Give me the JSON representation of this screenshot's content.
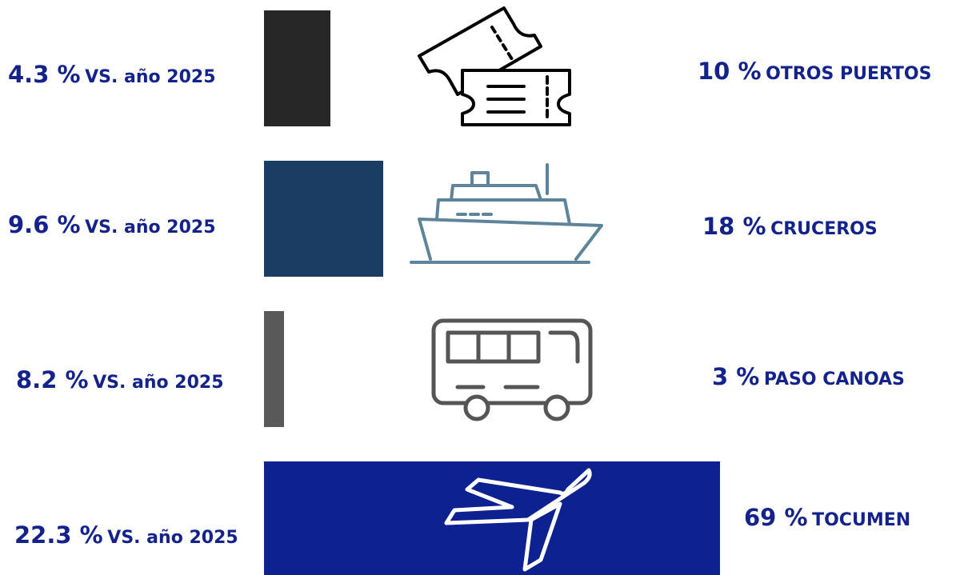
{
  "chart_data": {
    "type": "bar",
    "orientation": "horizontal",
    "categories": [
      "OTROS PUERTOS",
      "CRUCEROS",
      "PASO CANOAS",
      "TOCUMEN"
    ],
    "series": [
      {
        "values": [
          10,
          18,
          3,
          69
        ],
        "unit": "%"
      }
    ],
    "variation": [
      4.3,
      9.6,
      8.2,
      22.3
    ],
    "variation_suffix": "VS. año 2025",
    "share_labels": [
      "10 %",
      "18 %",
      "3 %",
      "69 %"
    ],
    "variation_labels": [
      "4.3 %",
      "9.6 %",
      "8.2 %",
      "22.3 %"
    ],
    "icons": [
      "tickets-icon",
      "cruise-ship-icon",
      "bus-icon",
      "airplane-icon"
    ],
    "colors": [
      "#272727",
      "#1b3d63",
      "#595959",
      "#0d2190"
    ],
    "icon_colors": [
      "#000000",
      "#5e8499",
      "#555555",
      "#ffffff"
    ],
    "label_color": "#14238c"
  }
}
